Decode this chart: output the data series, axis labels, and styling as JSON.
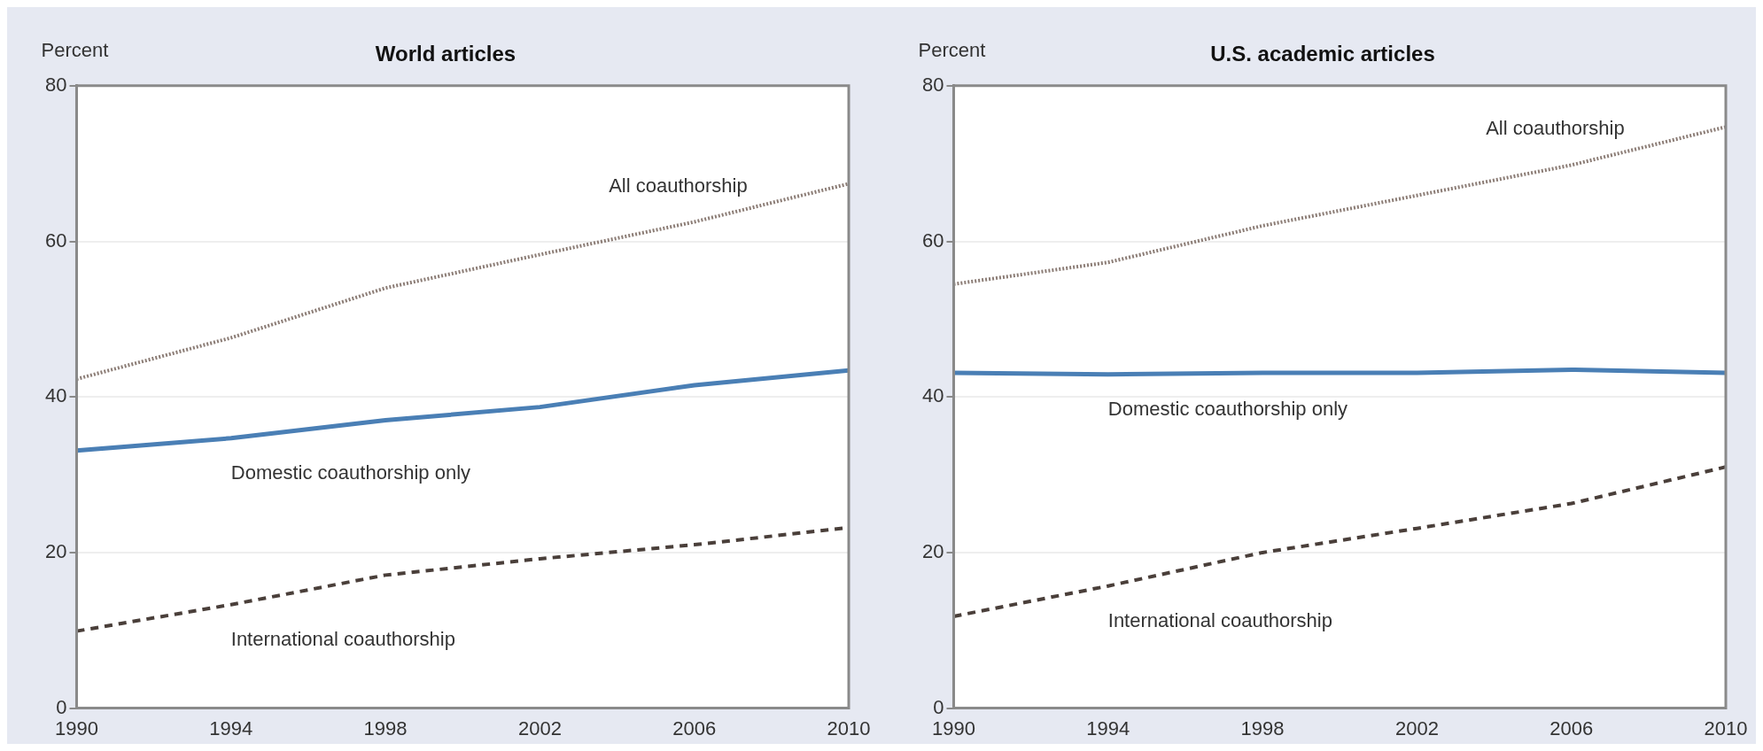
{
  "chart_data": [
    {
      "type": "line",
      "title": "World articles",
      "ylabel": "Percent",
      "x": [
        1990,
        1994,
        1998,
        2002,
        2006,
        2010
      ],
      "xlim": [
        1990,
        2010
      ],
      "xticks": [
        1990,
        1994,
        1998,
        2002,
        2006,
        2010
      ],
      "ylim": [
        0,
        80
      ],
      "yticks": [
        0,
        20,
        40,
        60,
        80
      ],
      "grid": "y",
      "legend": false,
      "marker": "none",
      "series": [
        {
          "name": "All coauthorship",
          "color": "#8c7d76",
          "line_style": "dotted",
          "values": [
            42.3,
            47.6,
            54,
            58.3,
            62.5,
            67.4
          ]
        },
        {
          "name": "Domestic coauthorship only",
          "color": "#4a7fb5",
          "line_style": "solid",
          "values": [
            33.1,
            34.7,
            37,
            38.7,
            41.5,
            43.4
          ]
        },
        {
          "name": "International coauthorship",
          "color": "#4a3f3a",
          "line_style": "dashed",
          "values": [
            9.9,
            13.3,
            17.1,
            19.2,
            21,
            23.2
          ]
        }
      ]
    },
    {
      "type": "line",
      "title": "U.S. academic articles",
      "ylabel": "Percent",
      "x": [
        1990,
        1994,
        1998,
        2002,
        2006,
        2010
      ],
      "xlim": [
        1990,
        2010
      ],
      "xticks": [
        1990,
        1994,
        1998,
        2002,
        2006,
        2010
      ],
      "ylim": [
        0,
        80
      ],
      "yticks": [
        0,
        20,
        40,
        60,
        80
      ],
      "grid": "y",
      "legend": false,
      "marker": "none",
      "series": [
        {
          "name": "All coauthorship",
          "color": "#8c7d76",
          "line_style": "dotted",
          "values": [
            54.5,
            57.3,
            62,
            65.9,
            69.8,
            74.7
          ]
        },
        {
          "name": "Domestic coauthorship only",
          "color": "#4a7fb5",
          "line_style": "solid",
          "values": [
            43.1,
            42.9,
            43.1,
            43.1,
            43.5,
            43.1
          ]
        },
        {
          "name": "International coauthorship",
          "color": "#4a3f3a",
          "line_style": "dashed",
          "values": [
            11.8,
            15.7,
            20,
            23.1,
            26.3,
            31
          ]
        }
      ]
    }
  ]
}
